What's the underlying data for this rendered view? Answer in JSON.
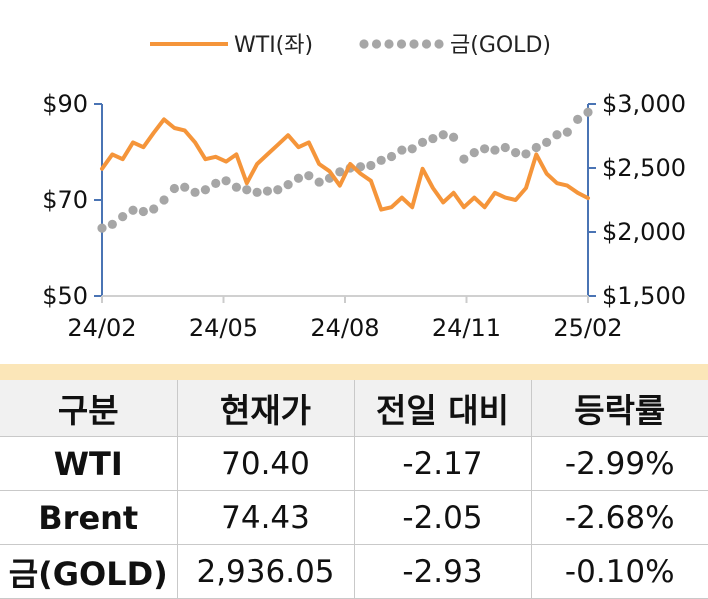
{
  "chart_data": {
    "type": "line",
    "x_ticks": [
      "24/02",
      "24/05",
      "24/08",
      "24/11",
      "25/02"
    ],
    "y_left": {
      "range": [
        50,
        90
      ],
      "ticks": [
        "$90",
        "$70",
        "$50"
      ],
      "tick_values": [
        90,
        70,
        50
      ]
    },
    "y_right": {
      "range": [
        1500,
        3000
      ],
      "ticks": [
        "$3,000",
        "$2,500",
        "$2,000",
        "$1,500"
      ],
      "tick_values": [
        3000,
        2500,
        2000,
        1500
      ]
    },
    "legend_position": "top-center",
    "grid": false,
    "series": [
      {
        "name": "WTI(좌)",
        "axis": "left",
        "style": "line",
        "color": "#f5953a",
        "points": [
          [
            "24/02",
            76.5
          ],
          [
            "24/02",
            79.5
          ],
          [
            "24/03",
            78.5
          ],
          [
            "24/03",
            82.0
          ],
          [
            "24/03",
            81.0
          ],
          [
            "24/03",
            84.0
          ],
          [
            "24/04",
            86.8
          ],
          [
            "24/04",
            85.0
          ],
          [
            "24/04",
            84.5
          ],
          [
            "24/04",
            82.0
          ],
          [
            "24/05",
            78.5
          ],
          [
            "24/05",
            79.0
          ],
          [
            "24/05",
            78.0
          ],
          [
            "24/05",
            79.5
          ],
          [
            "24/06",
            73.5
          ],
          [
            "24/06",
            77.5
          ],
          [
            "24/06",
            79.5
          ],
          [
            "24/06",
            81.5
          ],
          [
            "24/07",
            83.5
          ],
          [
            "24/07",
            81.0
          ],
          [
            "24/07",
            82.0
          ],
          [
            "24/07",
            77.5
          ],
          [
            "24/08",
            76.0
          ],
          [
            "24/08",
            73.0
          ],
          [
            "24/08",
            77.5
          ],
          [
            "24/08",
            75.5
          ],
          [
            "24/09",
            74.0
          ],
          [
            "24/09",
            68.0
          ],
          [
            "24/09",
            68.5
          ],
          [
            "24/09",
            70.5
          ],
          [
            "24/10",
            68.5
          ],
          [
            "24/10",
            76.5
          ],
          [
            "24/10",
            72.5
          ],
          [
            "24/10",
            69.5
          ],
          [
            "24/11",
            71.5
          ],
          [
            "24/11",
            68.5
          ],
          [
            "24/11",
            70.5
          ],
          [
            "24/11",
            68.5
          ],
          [
            "24/12",
            71.5
          ],
          [
            "24/12",
            70.5
          ],
          [
            "24/12",
            70.0
          ],
          [
            "24/12",
            72.5
          ],
          [
            "25/01",
            79.5
          ],
          [
            "25/01",
            75.5
          ],
          [
            "25/01",
            73.5
          ],
          [
            "25/01",
            73.0
          ],
          [
            "25/02",
            71.5
          ],
          [
            "25/02",
            70.4
          ]
        ]
      },
      {
        "name": "금(GOLD)",
        "axis": "right",
        "style": "dotted",
        "color": "#a6a6a6",
        "points": [
          [
            "24/02",
            2030
          ],
          [
            "24/02",
            2060
          ],
          [
            "24/03",
            2120
          ],
          [
            "24/03",
            2170
          ],
          [
            "24/03",
            2160
          ],
          [
            "24/03",
            2180
          ],
          [
            "24/04",
            2250
          ],
          [
            "24/04",
            2340
          ],
          [
            "24/04",
            2350
          ],
          [
            "24/04",
            2310
          ],
          [
            "24/05",
            2330
          ],
          [
            "24/05",
            2380
          ],
          [
            "24/05",
            2400
          ],
          [
            "24/05",
            2350
          ],
          [
            "24/06",
            2330
          ],
          [
            "24/06",
            2310
          ],
          [
            "24/06",
            2320
          ],
          [
            "24/06",
            2330
          ],
          [
            "24/07",
            2370
          ],
          [
            "24/07",
            2420
          ],
          [
            "24/07",
            2440
          ],
          [
            "24/07",
            2390
          ],
          [
            "24/08",
            2420
          ],
          [
            "24/08",
            2470
          ],
          [
            "24/08",
            2500
          ],
          [
            "24/08",
            2510
          ],
          [
            "24/09",
            2520
          ],
          [
            "24/09",
            2560
          ],
          [
            "24/09",
            2590
          ],
          [
            "24/09",
            2640
          ],
          [
            "24/10",
            2650
          ],
          [
            "24/10",
            2700
          ],
          [
            "24/10",
            2730
          ],
          [
            "24/10",
            2760
          ],
          [
            "24/11",
            2740
          ],
          [
            "24/11",
            2570
          ],
          [
            "24/11",
            2620
          ],
          [
            "24/11",
            2650
          ],
          [
            "24/12",
            2640
          ],
          [
            "24/12",
            2660
          ],
          [
            "24/12",
            2620
          ],
          [
            "24/12",
            2610
          ],
          [
            "25/01",
            2660
          ],
          [
            "25/01",
            2700
          ],
          [
            "25/01",
            2760
          ],
          [
            "25/01",
            2780
          ],
          [
            "25/02",
            2880
          ],
          [
            "25/02",
            2936
          ]
        ]
      }
    ]
  },
  "table": {
    "headers": [
      "구분",
      "현재가",
      "전일 대비",
      "등락률"
    ],
    "rows": [
      [
        "WTI",
        "70.40",
        "-2.17",
        "-2.99%"
      ],
      [
        "Brent",
        "74.43",
        "-2.05",
        "-2.68%"
      ],
      [
        "금(GOLD)",
        "2,936.05",
        "-2.93",
        "-0.10%"
      ]
    ]
  }
}
